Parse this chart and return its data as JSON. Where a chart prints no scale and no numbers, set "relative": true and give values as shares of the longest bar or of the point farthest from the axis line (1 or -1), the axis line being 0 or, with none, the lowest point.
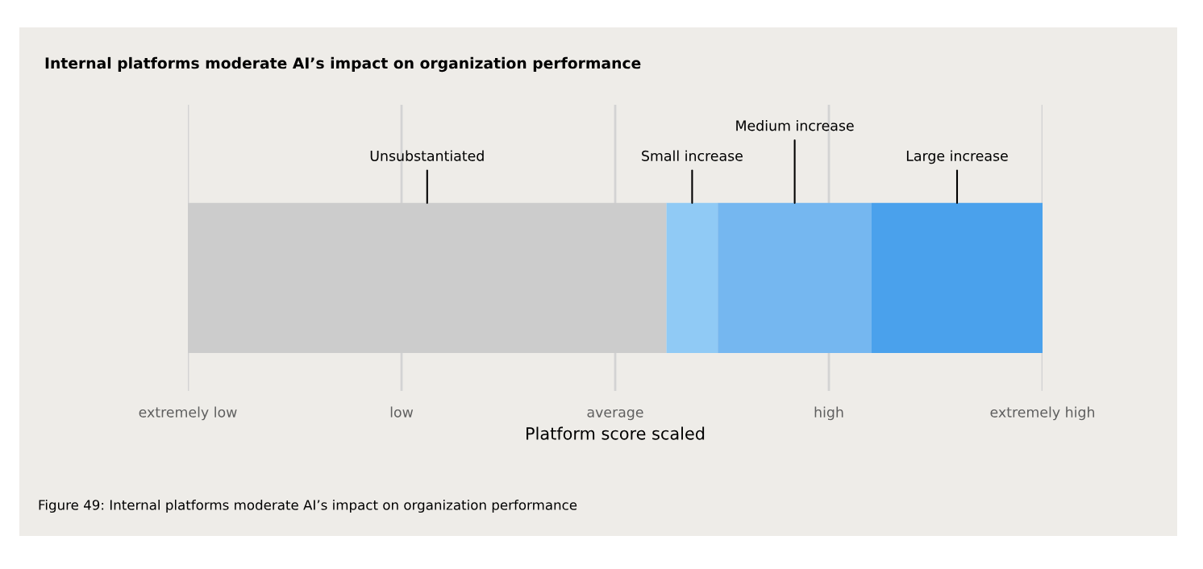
{
  "chart_data": {
    "type": "bar",
    "orientation": "horizontal",
    "stacked": true,
    "relative": true,
    "title": "Internal platforms moderate AI’s impact on organization performance",
    "xlabel": "Platform score scaled",
    "categories": [
      null
    ],
    "series": [
      {
        "name": "Unsubstantiated",
        "color": "#cccccc",
        "values": [
          0.56
        ]
      },
      {
        "name": "Small increase",
        "color": "#90caf5",
        "values": [
          0.06
        ]
      },
      {
        "name": "Medium increase",
        "color": "#75b7f0",
        "values": [
          0.18
        ]
      },
      {
        "name": "Large increase",
        "color": "#4aa1ec",
        "values": [
          0.2
        ]
      }
    ],
    "grid": "x",
    "annotations": [
      "extremely low",
      "low",
      "average",
      "high",
      "extremely high",
      "Figure 49: Internal platforms moderate AI’s impact on organization performance"
    ]
  }
}
